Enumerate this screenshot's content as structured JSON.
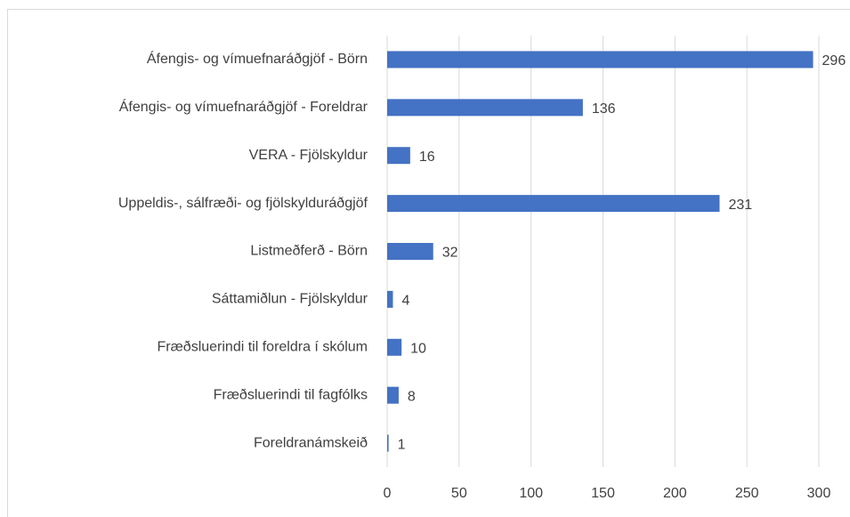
{
  "chart_data": {
    "type": "bar",
    "orientation": "horizontal",
    "categories": [
      "Áfengis- og vímuefnaráðgjöf - Börn",
      "Áfengis- og vímuefnaráðgjöf - Foreldrar",
      "VERA - Fjölskyldur",
      "Uppeldis-, sálfræði- og fjölskylduráðgjöf",
      "Listmeðferð - Börn",
      "Sáttamiðlun - Fjölskyldur",
      "Fræðsluerindi til foreldra í skólum",
      "Fræðsluerindi til fagfólks",
      "Foreldranámskeið"
    ],
    "values": [
      296,
      136,
      16,
      231,
      32,
      4,
      10,
      8,
      1
    ],
    "color": "#4472c4",
    "xlim": [
      0,
      300
    ],
    "xticks": [
      0,
      50,
      100,
      150,
      200,
      250,
      300
    ],
    "grid": true
  }
}
